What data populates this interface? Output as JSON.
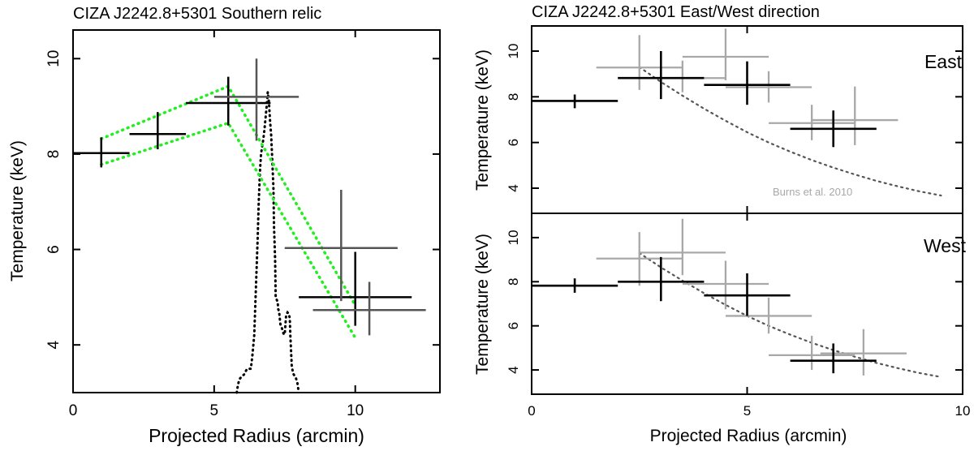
{
  "chart_data": [
    {
      "type": "scatter",
      "title": "CIZA J2242.8+5301 Southern relic",
      "xlabel": "Projected Radius (arcmin)",
      "ylabel": "Temperature (keV)",
      "xlim": [
        0,
        13
      ],
      "ylim": [
        3,
        10.6
      ],
      "xticks": [
        0,
        5,
        10
      ],
      "yticks": [
        4,
        6,
        8,
        10
      ],
      "series": [
        {
          "color": "#000000",
          "points": [
            {
              "x": 1.0,
              "xerr": 1.0,
              "y": 8.02,
              "ylo": 7.72,
              "yhi": 8.35
            },
            {
              "x": 3.0,
              "xerr": 1.0,
              "y": 8.42,
              "ylo": 8.1,
              "yhi": 8.88
            },
            {
              "x": 5.5,
              "xerr": 1.5,
              "y": 9.07,
              "ylo": 8.6,
              "yhi": 9.62
            },
            {
              "x": 10.0,
              "xerr": 2.0,
              "y": 5.0,
              "ylo": 4.4,
              "yhi": 5.95
            }
          ]
        },
        {
          "color": "#555555",
          "points": [
            {
              "x": 6.5,
              "xerr": 1.5,
              "y": 9.2,
              "ylo": 8.28,
              "yhi": 10.0
            },
            {
              "x": 9.5,
              "xerr": 2.0,
              "y": 6.03,
              "ylo": 4.92,
              "yhi": 7.25
            },
            {
              "x": 10.5,
              "xerr": 2.0,
              "y": 4.73,
              "ylo": 4.2,
              "yhi": 5.32
            }
          ]
        }
      ],
      "band_upper": {
        "x": [
          1.0,
          5.5,
          10.0
        ],
        "y": [
          8.32,
          9.42,
          4.83
        ]
      },
      "band_lower": {
        "x": [
          1.0,
          5.5,
          10.0
        ],
        "y": [
          7.78,
          8.65,
          4.15
        ]
      },
      "band_color": "#22ee22",
      "profile": {
        "color": "#000000",
        "x": [
          5.8,
          5.84,
          5.88,
          5.92,
          6.06,
          6.1,
          6.14,
          6.18,
          6.3,
          6.35,
          6.42,
          6.48,
          6.54,
          6.58,
          6.62,
          6.66,
          6.7,
          6.74,
          6.78,
          6.82,
          6.86,
          6.9,
          6.94,
          6.98,
          7.02,
          7.05,
          7.1,
          7.12,
          7.16,
          7.18,
          7.25,
          7.27,
          7.3,
          7.35,
          7.4,
          7.45,
          7.47,
          7.5,
          7.55,
          7.6,
          7.65,
          7.68,
          7.7,
          7.75,
          7.8,
          7.85,
          7.9,
          7.95,
          8.0
        ],
        "y": [
          3.0,
          3.15,
          3.25,
          3.3,
          3.38,
          3.43,
          3.47,
          3.5,
          3.5,
          3.75,
          4.2,
          5.2,
          6.2,
          7.0,
          7.6,
          8.0,
          8.15,
          8.3,
          8.5,
          8.75,
          9.0,
          9.3,
          9.1,
          8.7,
          8.4,
          8.0,
          7.3,
          6.5,
          5.8,
          5.0,
          4.9,
          4.75,
          4.7,
          4.42,
          4.35,
          4.25,
          4.22,
          4.22,
          4.62,
          4.68,
          4.65,
          4.55,
          4.2,
          3.55,
          3.4,
          3.35,
          3.3,
          3.2,
          3.0
        ]
      }
    },
    {
      "type": "scatter",
      "title": "CIZA J2242.8+5301 East/West direction",
      "xlabel": "Projected Radius (arcmin)",
      "xlim": [
        0,
        10
      ],
      "xticks": [
        0,
        5,
        10
      ],
      "panels": [
        {
          "label": "East",
          "ylabel": "Temperature (keV)",
          "ylim": [
            2.9,
            11.1
          ],
          "yticks": [
            4,
            6,
            8,
            10
          ],
          "series": [
            {
              "color": "#000000",
              "points": [
                {
                  "x": 1.0,
                  "xerr": 1.0,
                  "y": 7.82,
                  "ylo": 7.5,
                  "yhi": 8.1
                },
                {
                  "x": 3.0,
                  "xerr": 1.0,
                  "y": 8.82,
                  "ylo": 7.9,
                  "yhi": 10.0
                },
                {
                  "x": 5.0,
                  "xerr": 1.0,
                  "y": 8.52,
                  "ylo": 7.65,
                  "yhi": 9.55
                },
                {
                  "x": 7.0,
                  "xerr": 1.0,
                  "y": 6.6,
                  "ylo": 5.8,
                  "yhi": 7.4
                }
              ]
            },
            {
              "color": "#a8a8a8",
              "points": [
                {
                  "x": 2.5,
                  "xerr": 1.0,
                  "y": 9.28,
                  "ylo": 8.3,
                  "yhi": 10.7
                },
                {
                  "x": 3.5,
                  "xerr": 1.0,
                  "y": 8.82,
                  "ylo": 8.2,
                  "yhi": 9.58
                },
                {
                  "x": 4.5,
                  "xerr": 1.0,
                  "y": 9.75,
                  "ylo": 8.72,
                  "yhi": 10.98
                },
                {
                  "x": 5.5,
                  "xerr": 1.0,
                  "y": 8.42,
                  "ylo": 7.75,
                  "yhi": 9.12
                },
                {
                  "x": 6.5,
                  "xerr": 1.0,
                  "y": 6.85,
                  "ylo": 6.1,
                  "yhi": 7.65
                },
                {
                  "x": 7.5,
                  "xerr": 1.0,
                  "y": 6.98,
                  "ylo": 5.88,
                  "yhi": 8.45
                }
              ]
            }
          ],
          "model": {
            "x": [
              2.5,
              3.0,
              3.5,
              4.0,
              4.5,
              5.0,
              5.5,
              6.0,
              6.5,
              7.0,
              7.5,
              8.0,
              8.5,
              9.0,
              9.5
            ],
            "y": [
              9.3,
              8.65,
              8.05,
              7.48,
              6.95,
              6.45,
              6.0,
              5.6,
              5.23,
              4.9,
              4.6,
              4.32,
              4.08,
              3.86,
              3.68
            ]
          },
          "annotation": "Burns et al. 2010"
        },
        {
          "label": "West",
          "ylabel": "Temperature (keV)",
          "ylim": [
            2.9,
            11.1
          ],
          "yticks": [
            4,
            6,
            8,
            10
          ],
          "series": [
            {
              "color": "#000000",
              "points": [
                {
                  "x": 1.0,
                  "xerr": 1.0,
                  "y": 7.82,
                  "ylo": 7.5,
                  "yhi": 8.15
                },
                {
                  "x": 3.0,
                  "xerr": 1.0,
                  "y": 8.0,
                  "ylo": 7.12,
                  "yhi": 9.12
                },
                {
                  "x": 5.0,
                  "xerr": 1.0,
                  "y": 7.38,
                  "ylo": 6.45,
                  "yhi": 8.38
                },
                {
                  "x": 7.0,
                  "xerr": 1.0,
                  "y": 4.42,
                  "ylo": 3.85,
                  "yhi": 5.2
                }
              ]
            },
            {
              "color": "#a8a8a8",
              "points": [
                {
                  "x": 2.5,
                  "xerr": 1.0,
                  "y": 9.05,
                  "ylo": 7.82,
                  "yhi": 10.25
                },
                {
                  "x": 3.5,
                  "xerr": 1.0,
                  "y": 9.32,
                  "ylo": 8.3,
                  "yhi": 10.85
                },
                {
                  "x": 4.5,
                  "xerr": 1.0,
                  "y": 7.9,
                  "ylo": 6.75,
                  "yhi": 8.95
                },
                {
                  "x": 5.5,
                  "xerr": 1.0,
                  "y": 6.45,
                  "ylo": 5.65,
                  "yhi": 7.28
                },
                {
                  "x": 6.5,
                  "xerr": 1.0,
                  "y": 4.67,
                  "ylo": 4.0,
                  "yhi": 5.55
                },
                {
                  "x": 7.7,
                  "xerr": 1.0,
                  "y": 4.75,
                  "ylo": 3.75,
                  "yhi": 5.85
                }
              ]
            }
          ],
          "model": {
            "x": [
              2.5,
              3.0,
              3.5,
              4.0,
              4.5,
              5.0,
              5.5,
              6.0,
              6.5,
              7.0,
              7.5,
              8.0,
              8.5,
              9.0,
              9.5
            ],
            "y": [
              9.3,
              8.65,
              8.05,
              7.48,
              6.95,
              6.45,
              6.0,
              5.6,
              5.23,
              4.9,
              4.6,
              4.32,
              4.08,
              3.86,
              3.68
            ]
          }
        }
      ]
    }
  ]
}
